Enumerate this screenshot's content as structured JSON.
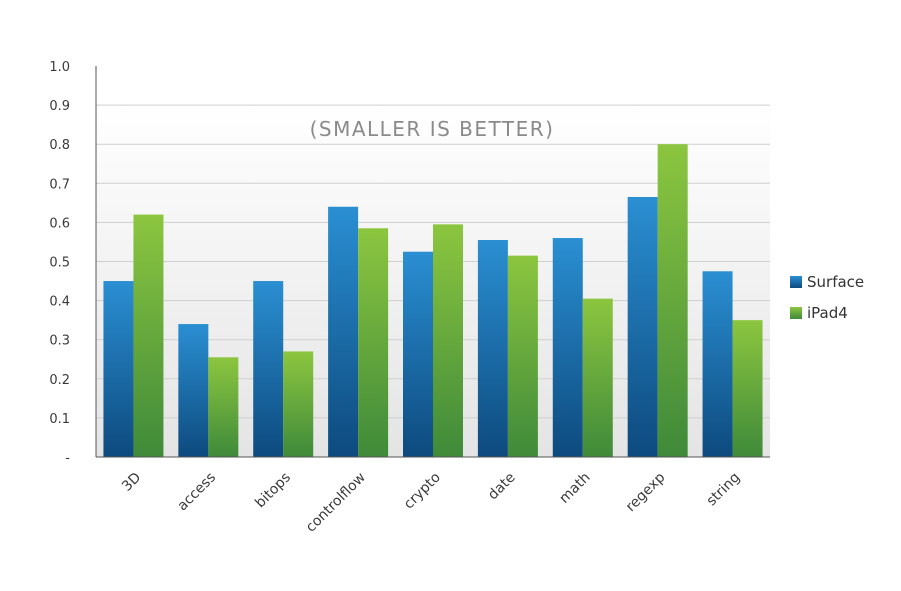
{
  "chart_data": {
    "type": "bar",
    "title": "(SMALLER IS BETTER)",
    "xlabel": "",
    "ylabel": "",
    "categories": [
      "3D",
      "access",
      "bitops",
      "controlflow",
      "crypto",
      "date",
      "math",
      "regexp",
      "string"
    ],
    "series": [
      {
        "name": "Surface",
        "color": "#1a6fae",
        "values": [
          0.45,
          0.34,
          0.45,
          0.64,
          0.525,
          0.555,
          0.56,
          0.665,
          0.475
        ]
      },
      {
        "name": "iPad4",
        "color": "#6aaa3a",
        "values": [
          0.62,
          0.255,
          0.27,
          0.585,
          0.595,
          0.515,
          0.405,
          0.8,
          0.35
        ]
      }
    ],
    "ylim": [
      0,
      1.0
    ],
    "yticks": [
      "-",
      "0.1",
      "0.2",
      "0.3",
      "0.4",
      "0.5",
      "0.6",
      "0.7",
      "0.8",
      "0.9",
      "1.0"
    ],
    "grid": true,
    "legend_position": "right"
  }
}
